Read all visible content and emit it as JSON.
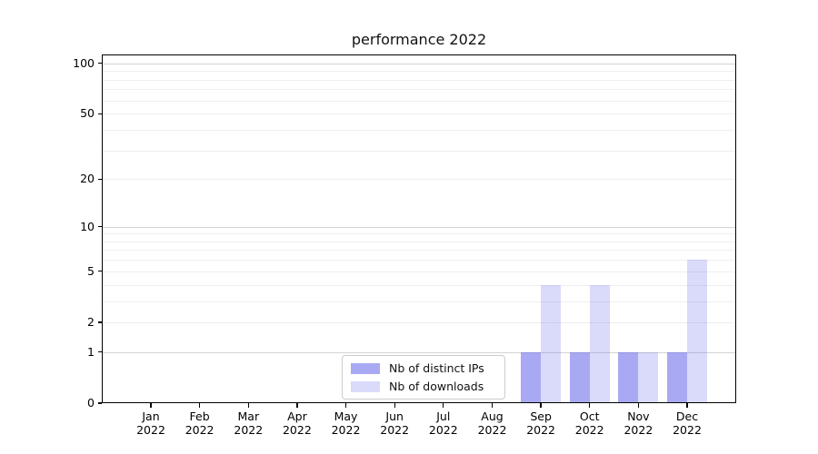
{
  "chart_data": {
    "type": "bar",
    "title": "performance 2022",
    "categories": [
      "Jan",
      "Feb",
      "Mar",
      "Apr",
      "May",
      "Jun",
      "Jul",
      "Aug",
      "Sep",
      "Oct",
      "Nov",
      "Dec"
    ],
    "category_year": "2022",
    "series": [
      {
        "name": "Nb of distinct IPs",
        "color": "rgba(80,80,230,0.49)",
        "color_hex_on_white": "#aaaaf2",
        "values": [
          0,
          0,
          0,
          0,
          0,
          0,
          0,
          0,
          1,
          1,
          1,
          1
        ]
      },
      {
        "name": "Nb of downloads",
        "color": "rgba(80,80,230,0.21)",
        "color_hex_on_white": "#dadaf8",
        "values": [
          0,
          0,
          0,
          0,
          0,
          0,
          0,
          0,
          4,
          4,
          1,
          6
        ]
      }
    ],
    "xlabel": "",
    "ylabel": "",
    "y_ticks": [
      0,
      1,
      2,
      5,
      10,
      20,
      50,
      100
    ],
    "y_tick_labels": [
      "0",
      "1",
      "2",
      "5",
      "10",
      "20",
      "50",
      "100"
    ],
    "scale": "log1p",
    "ylim": [
      0,
      113
    ],
    "grid": true,
    "legend_position": "lower center-left inside axes"
  }
}
